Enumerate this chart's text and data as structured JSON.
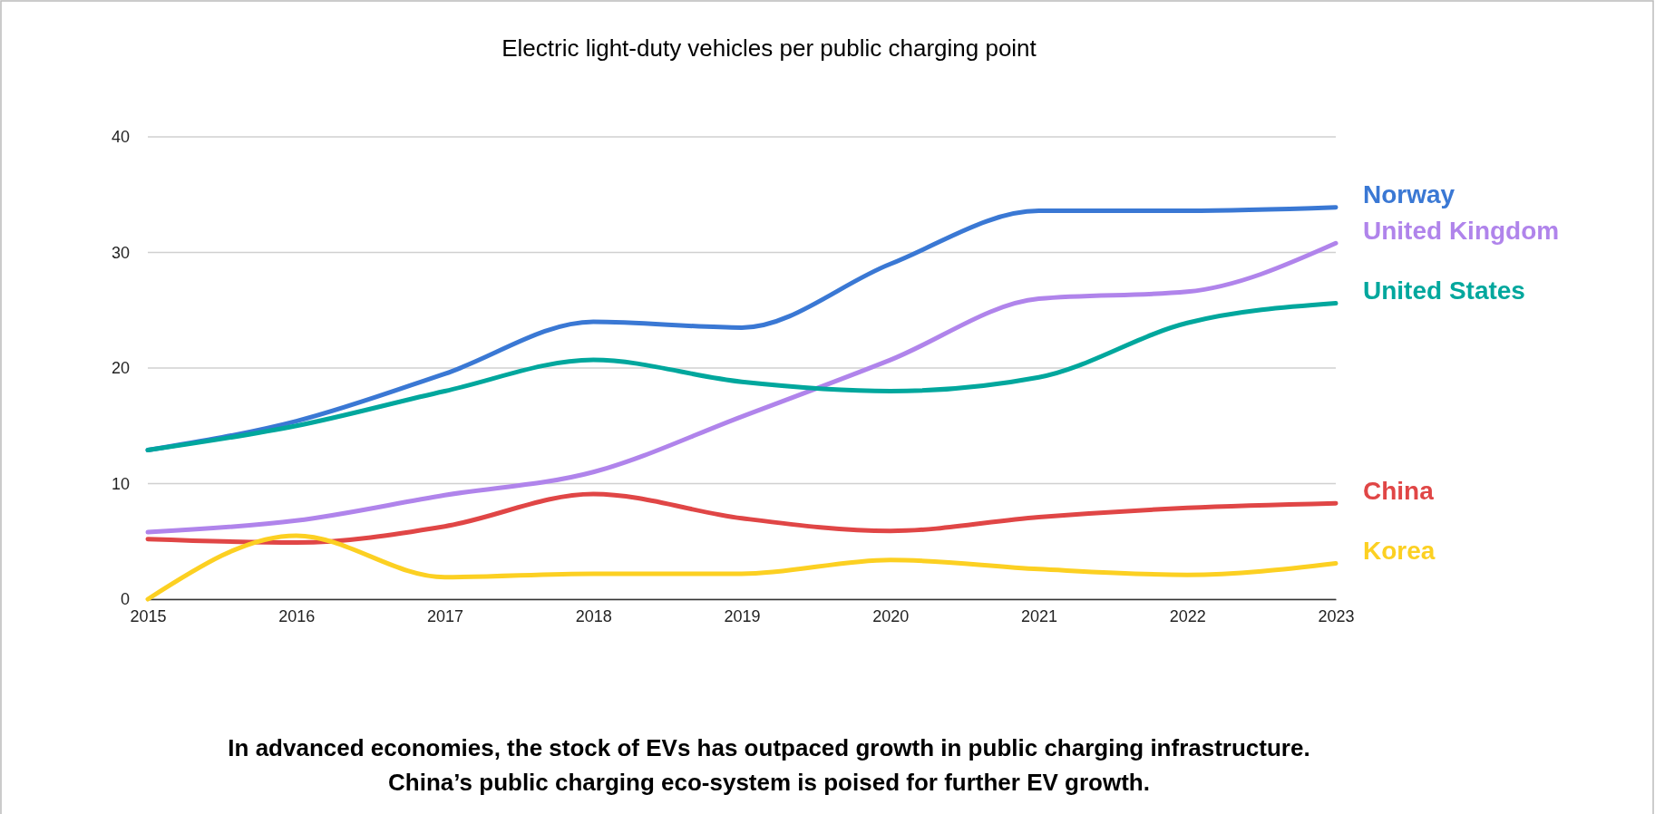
{
  "chart_data": {
    "type": "line",
    "title": "Electric light-duty vehicles per public charging point",
    "x": [
      2015,
      2016,
      2017,
      2018,
      2019,
      2020,
      2021,
      2022,
      2023
    ],
    "xlim": [
      2015,
      2023
    ],
    "xticks": [
      2015,
      2016,
      2017,
      2018,
      2019,
      2020,
      2021,
      2022,
      2023
    ],
    "ylim": [
      0,
      40
    ],
    "yticks": [
      0,
      10,
      20,
      30,
      40
    ],
    "grid": "y",
    "line_style": "solid",
    "marker": "none",
    "series": [
      {
        "name": "Norway",
        "color": "#3a78d4",
        "values": [
          12.9,
          15.4,
          19.5,
          24.0,
          23.5,
          29.0,
          33.6,
          33.6,
          33.9
        ]
      },
      {
        "name": "United Kingdom",
        "color": "#b084eb",
        "values": [
          5.8,
          6.8,
          9.0,
          11.0,
          15.8,
          20.7,
          26.0,
          26.6,
          30.8
        ]
      },
      {
        "name": "United States",
        "color": "#00a79d",
        "values": [
          12.9,
          15.0,
          18.0,
          20.7,
          18.8,
          18.0,
          19.2,
          23.9,
          25.6
        ]
      },
      {
        "name": "China",
        "color": "#e04646",
        "values": [
          5.2,
          4.9,
          6.3,
          9.1,
          7.0,
          5.9,
          7.1,
          7.9,
          8.3
        ]
      },
      {
        "name": "Korea",
        "color": "#fcd022",
        "values": [
          0,
          5.5,
          1.9,
          2.2,
          2.2,
          3.4,
          2.6,
          2.1,
          3.1
        ]
      }
    ],
    "annotations": [
      "In advanced economies, the stock of EVs has outpaced growth in public charging infrastructure.",
      "China’s public charging eco-system is poised for further EV growth."
    ]
  }
}
